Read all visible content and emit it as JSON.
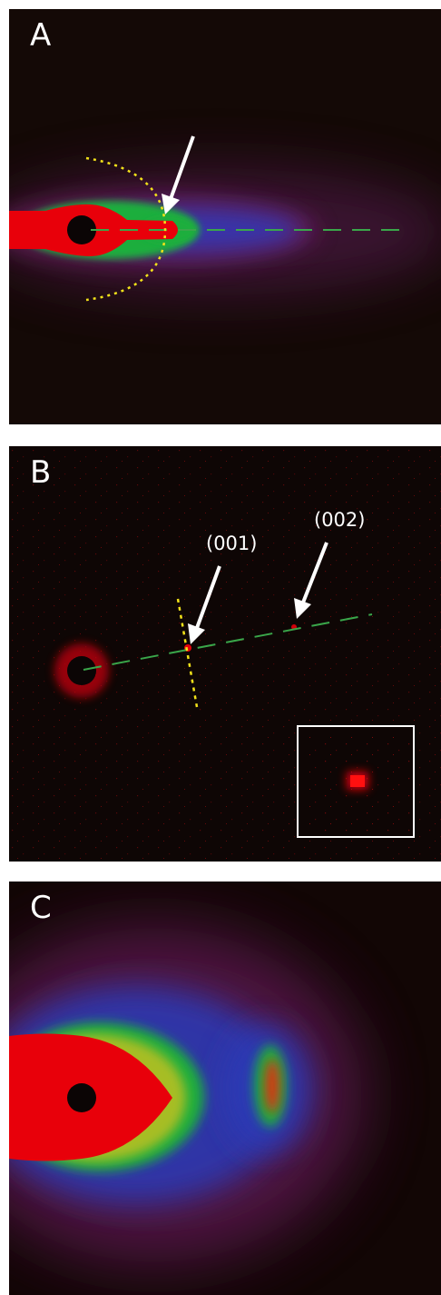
{
  "panels": [
    {
      "label": "A"
    },
    {
      "label": "B",
      "peaks": [
        "(001)",
        "(002)"
      ]
    },
    {
      "label": "C"
    }
  ],
  "colors": {
    "background": "#140906",
    "intensity_high": "#e8000a",
    "intensity_mid": "#1fae3c",
    "intensity_low": "#3a3ab8",
    "intensity_faint": "#6a1f5e",
    "guide_line_green": "#3aa64a",
    "guide_line_yellow": "#f2e21a",
    "arrow_white": "#ffffff"
  }
}
